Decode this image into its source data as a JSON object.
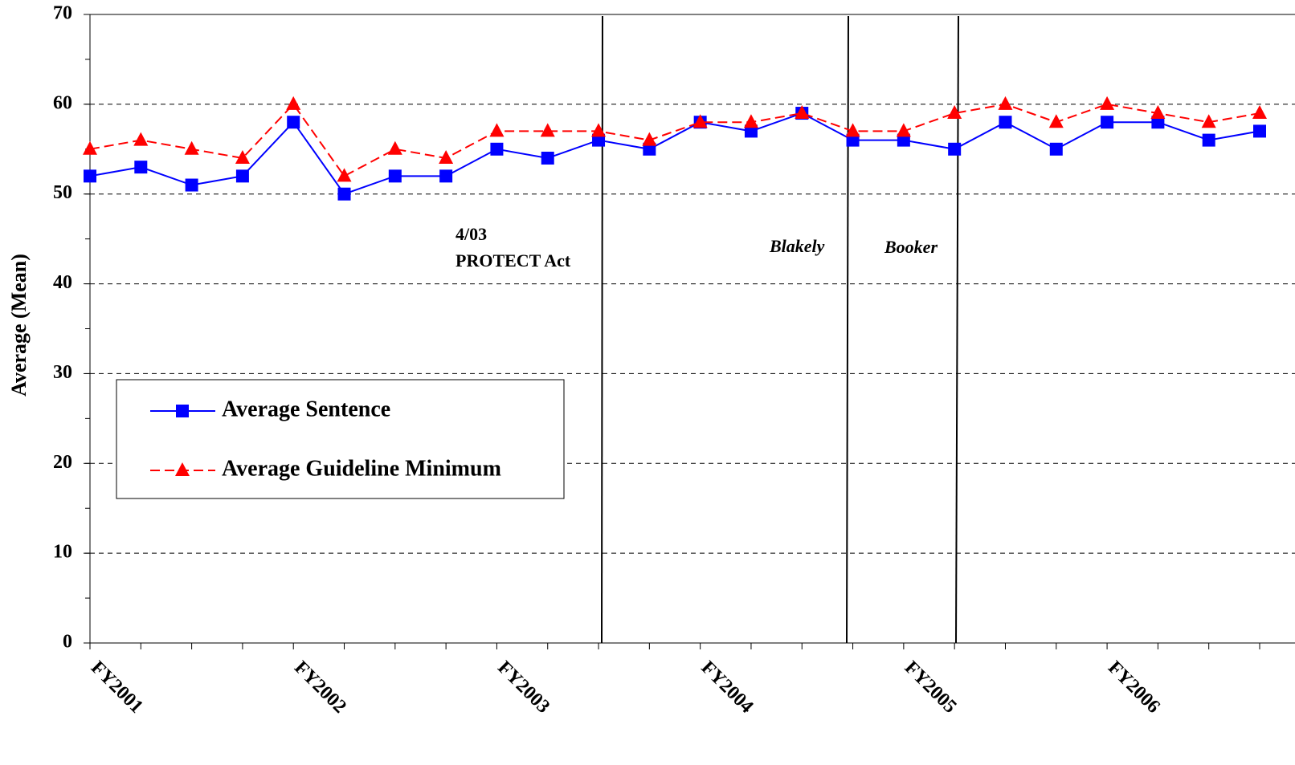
{
  "chart_data": {
    "type": "line",
    "y_label": "Average (Mean)",
    "categories": [
      "FY2001",
      null,
      null,
      null,
      "FY2002",
      null,
      null,
      null,
      "FY2003",
      null,
      null,
      null,
      "FY2004",
      null,
      null,
      null,
      "FY2005",
      null,
      null,
      null,
      "FY2006",
      null,
      null,
      null
    ],
    "series": [
      {
        "name": "Average Sentence",
        "color": "#0000ff",
        "marker": "square",
        "dashed": false,
        "values": [
          52,
          53,
          51,
          52,
          58,
          50,
          52,
          52,
          55,
          54,
          56,
          55,
          58,
          57,
          59,
          56,
          56,
          55,
          58,
          55,
          58,
          58,
          56,
          57
        ]
      },
      {
        "name": "Average Guideline Minimum",
        "color": "#ff0000",
        "marker": "triangle",
        "dashed": true,
        "values": [
          55,
          56,
          55,
          54,
          60,
          52,
          55,
          54,
          57,
          57,
          57,
          56,
          58,
          58,
          59,
          57,
          57,
          59,
          60,
          58,
          60,
          59,
          58,
          59
        ]
      }
    ],
    "annotations": [
      "4/03",
      "PROTECT Act",
      "Blakely",
      "Booker"
    ],
    "ylim": [
      0,
      70
    ],
    "yticks": [
      0,
      10,
      20,
      30,
      40,
      50,
      60,
      70
    ],
    "grid": true
  }
}
